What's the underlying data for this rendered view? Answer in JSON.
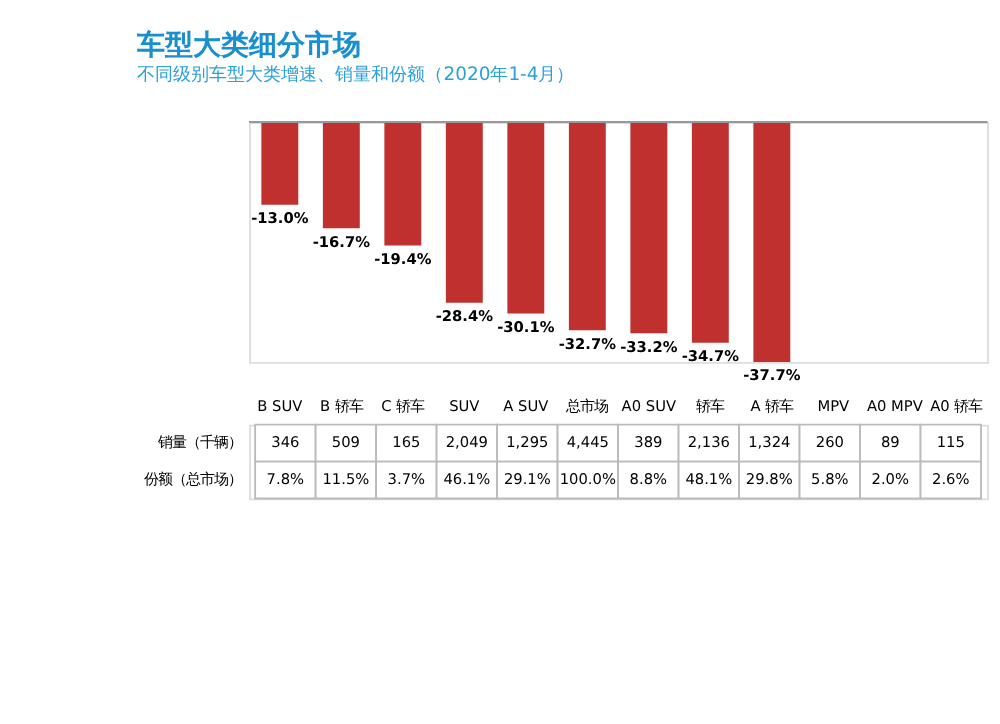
{
  "chart_data": {
    "type": "bar",
    "title": "车型大类细分市场",
    "subtitle": "不同级别车型大类增速、销量和份额（2020年1-4月）",
    "categories": [
      "B SUV",
      "B 轿车",
      "C 轿车",
      "SUV",
      "A SUV",
      "总市场",
      "A0 SUV",
      "轿车",
      "A 轿车",
      "MPV",
      "A0 MPV",
      "A0 轿车"
    ],
    "values": [
      -13.0,
      -16.7,
      -19.4,
      -28.4,
      -30.1,
      -32.7,
      -33.2,
      -34.7,
      -37.7,
      null,
      null,
      null
    ],
    "value_labels": [
      "-13.0%",
      "-16.7%",
      "-19.4%",
      "-28.4%",
      "-30.1%",
      "-32.7%",
      "-33.2%",
      "-34.7%",
      "-37.7%",
      null,
      null,
      null
    ],
    "color": "#c0302e",
    "annotations": [
      "销量（千辆）",
      "346",
      "509",
      "165",
      "2,049",
      "1,295",
      "4,445",
      "389",
      "2,136",
      "1,324",
      "260",
      "89",
      "115",
      "份额（总市场）",
      "7.8%",
      "11.5%",
      "3.7%",
      "46.1%",
      "29.1%",
      "100.0%",
      "8.8%",
      "48.1%",
      "29.8%",
      "5.8%",
      "2.0%",
      "2.6%"
    ]
  }
}
